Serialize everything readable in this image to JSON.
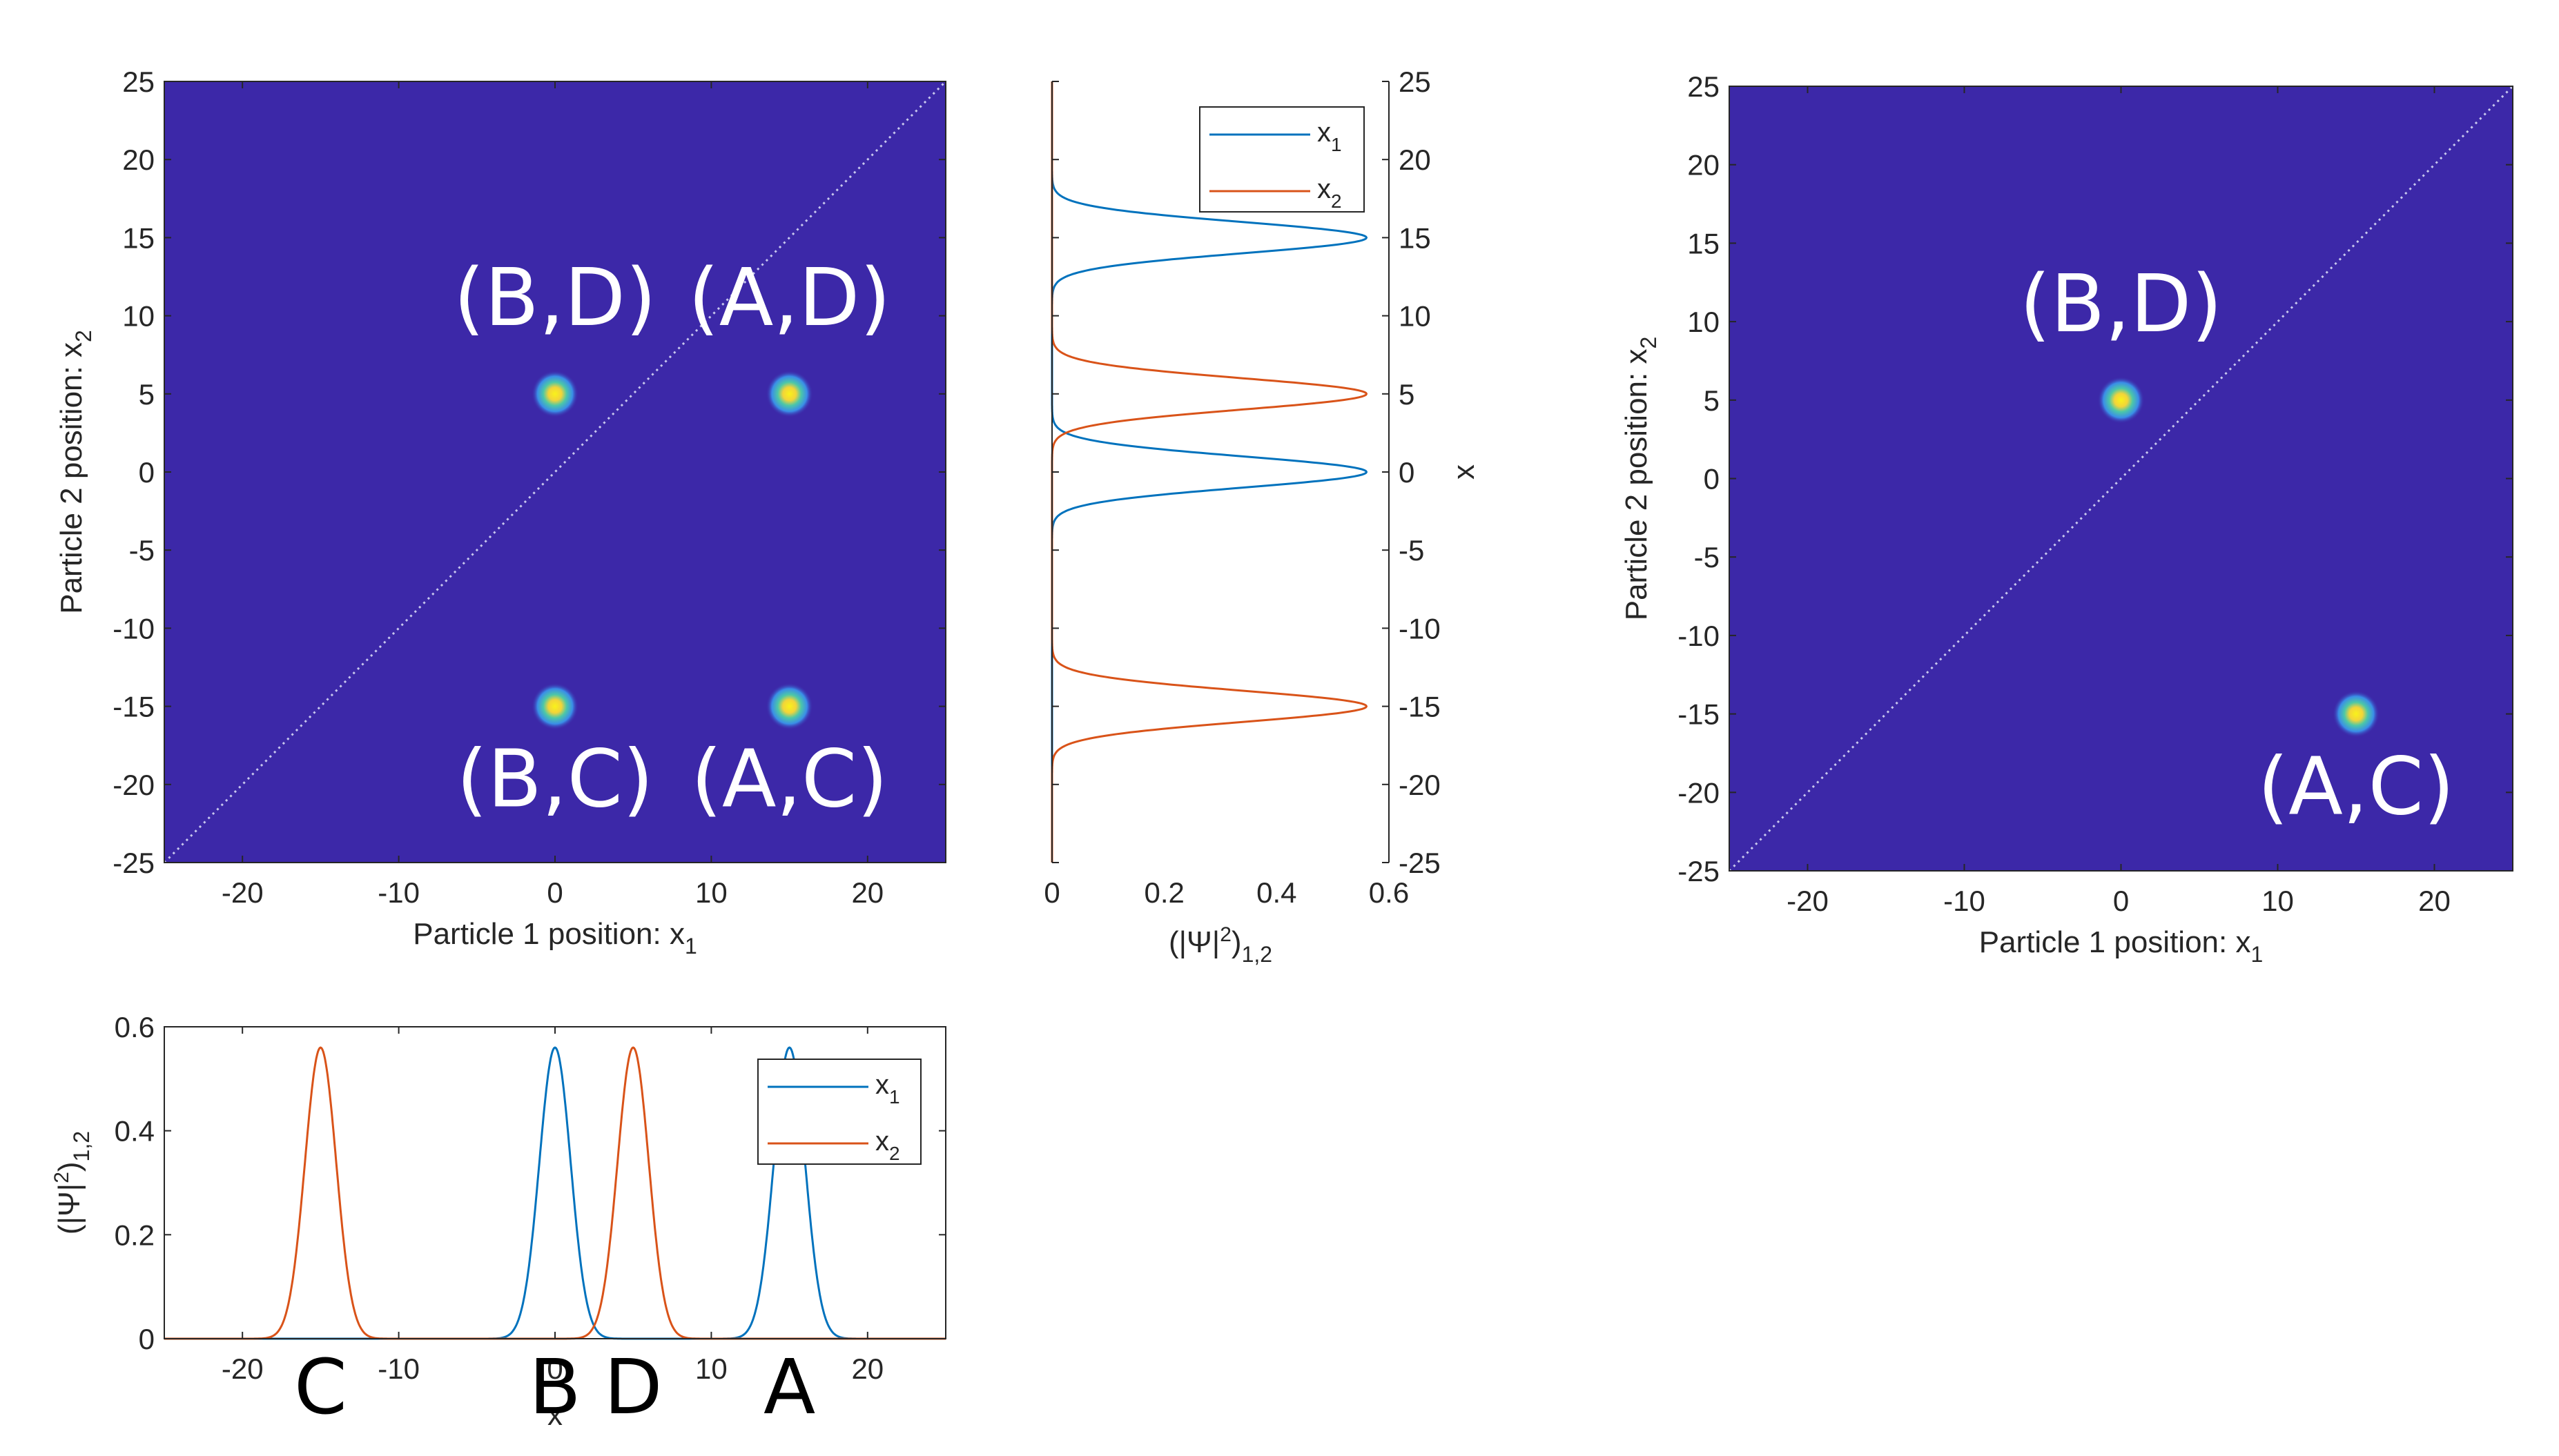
{
  "chart_data": [
    {
      "id": "heatmap_left",
      "type": "heatmap",
      "title": "",
      "xlabel": "Particle 1 position: x",
      "xlabel_sub": "1",
      "ylabel": "Particle 2 position: x",
      "ylabel_sub": "2",
      "xlim": [
        -25,
        25
      ],
      "ylim": [
        -25,
        25
      ],
      "xticks": [
        "-20",
        "-10",
        "0",
        "10",
        "20"
      ],
      "yticks": [
        "25",
        "20",
        "15",
        "10",
        "5",
        "0",
        "-5",
        "-10",
        "-15",
        "-20",
        "-25"
      ],
      "background_color": "#3c28a8",
      "diagonal": "dotted x2 = x1",
      "peaks": [
        {
          "x": 0,
          "y": 5,
          "label": "(B,D)"
        },
        {
          "x": 15,
          "y": 5,
          "label": "(A,D)"
        },
        {
          "x": 0,
          "y": -15,
          "label": "(B,C)"
        },
        {
          "x": 15,
          "y": -15,
          "label": "(A,C)"
        }
      ]
    },
    {
      "id": "marginal_vertical",
      "type": "line",
      "orientation": "vertical",
      "xlabel": "(|Ψ|",
      "xlabel_sup": "2",
      "xlabel_tail": ")",
      "xlabel_sub": "1,2",
      "ylabel": "x",
      "xlim": [
        0,
        0.6
      ],
      "ylim": [
        -25,
        25
      ],
      "xticks": [
        "0",
        "0.2",
        "0.4",
        "0.6"
      ],
      "yticks": [
        "25",
        "20",
        "15",
        "10",
        "5",
        "0",
        "-5",
        "-10",
        "-15",
        "-20",
        "-25"
      ],
      "legend": [
        "x1",
        "x2"
      ],
      "series": [
        {
          "name": "x1",
          "color": "#0072bd",
          "peaks": [
            15,
            0
          ],
          "amplitude": 0.56,
          "sigma": 1.0
        },
        {
          "name": "x2",
          "color": "#d95319",
          "peaks": [
            5,
            -15
          ],
          "amplitude": 0.56,
          "sigma": 1.0
        }
      ]
    },
    {
      "id": "heatmap_right",
      "type": "heatmap",
      "xlabel": "Particle 1 position: x",
      "xlabel_sub": "1",
      "ylabel": "Particle 2 position: x",
      "ylabel_sub": "2",
      "xlim": [
        -25,
        25
      ],
      "ylim": [
        -25,
        25
      ],
      "xticks": [
        "-20",
        "-10",
        "0",
        "10",
        "20"
      ],
      "yticks": [
        "25",
        "20",
        "15",
        "10",
        "5",
        "0",
        "-5",
        "-10",
        "-15",
        "-20",
        "-25"
      ],
      "background_color": "#3c28a8",
      "diagonal": "dotted x2 = x1",
      "peaks": [
        {
          "x": 0,
          "y": 5,
          "label": "(B,D)"
        },
        {
          "x": 15,
          "y": -15,
          "label": "(A,C)"
        }
      ]
    },
    {
      "id": "marginal_horizontal",
      "type": "line",
      "ylabel": "(|Ψ|",
      "ylabel_sup": "2",
      "ylabel_tail": ")",
      "ylabel_sub": "1,2",
      "xlabel": "x",
      "xlim": [
        -25,
        25
      ],
      "ylim": [
        0,
        0.6
      ],
      "xticks": [
        "-20",
        "-10",
        "0",
        "10",
        "20"
      ],
      "yticks": [
        "0.6",
        "0.4",
        "0.2",
        "0"
      ],
      "legend": [
        "x1",
        "x2"
      ],
      "series": [
        {
          "name": "x1",
          "color": "#0072bd",
          "peaks": [
            0,
            15
          ],
          "amplitude": 0.56,
          "sigma": 1.0
        },
        {
          "name": "x2",
          "color": "#d95319",
          "peaks": [
            -15,
            5
          ],
          "amplitude": 0.56,
          "sigma": 1.0
        }
      ],
      "point_labels": [
        {
          "x": -15,
          "label": "C"
        },
        {
          "x": 0,
          "label": "B"
        },
        {
          "x": 5,
          "label": "D"
        },
        {
          "x": 15,
          "label": "A"
        }
      ]
    }
  ]
}
